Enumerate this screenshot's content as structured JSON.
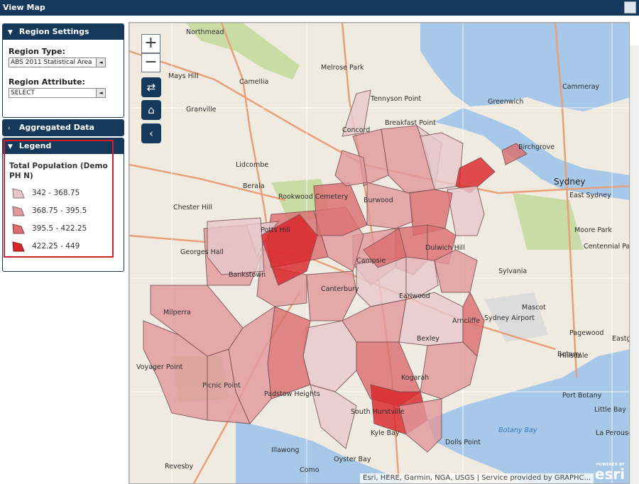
{
  "window": {
    "title": "View Map"
  },
  "sidebar": {
    "region_settings": {
      "title": "Region Settings",
      "region_type_label": "Region Type:",
      "region_type_value": "ABS 2011 Statistical Area",
      "region_attribute_label": "Region Attribute:",
      "region_attribute_value": "SELECT"
    },
    "aggregated": {
      "title": "Aggregated Data"
    },
    "legend": {
      "title": "Legend",
      "heading": "Total Population (Demo PH N)",
      "items": [
        {
          "range": "342 - 368.75",
          "color": "#e6c8ca"
        },
        {
          "range": "368.75 - 395.5",
          "color": "#e0999c"
        },
        {
          "range": "395.5 - 422.25",
          "color": "#dc6e70"
        },
        {
          "range": "422.25 - 449",
          "color": "#d9262a"
        }
      ]
    }
  },
  "map": {
    "zoom_in": "+",
    "zoom_out": "−",
    "labels": [
      "Northmead",
      "Mays Hill",
      "Camellia",
      "Melrose Park",
      "Tennyson Point",
      "Granville",
      "Breakfast Point",
      "Greenwich",
      "Cammeray",
      "Birchgrove",
      "Berala",
      "Rookwood Cemetery",
      "Burwood",
      "Chester Hill",
      "Georges Hall",
      "Sydney",
      "East Sydney",
      "Moore Park",
      "Centennial Park",
      "Mascot",
      "Sydney Airport",
      "Pagewood",
      "Eastgardens",
      "Hillsdale",
      "Milperra",
      "Voyager Point",
      "Picnic Point",
      "Padstow Heights",
      "Kogarah",
      "South Hurstville",
      "Kyle Bay",
      "Dolls Point",
      "Botany Bay",
      "Little Bay",
      "La Perouse",
      "Port Botany",
      "Illawong",
      "Oyster Bay",
      "Campsie",
      "Concord",
      "Lidcombe",
      "Bexley",
      "Arncliffe",
      "Earlwood",
      "Potts Hill",
      "Bankstown",
      "Canterbury",
      "Dulwich Hill",
      "Sylvania",
      "Botany",
      "Como",
      "Revesby"
    ],
    "attribution": "Esri, HERE, Garmin, NGA, USGS | Service provided by GRAPHC...",
    "esri_powered": "POWERED BY",
    "esri_logo": "esri"
  }
}
